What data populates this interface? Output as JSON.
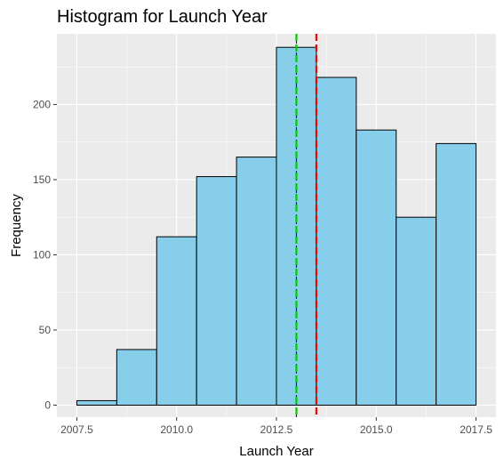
{
  "chart_data": {
    "type": "bar",
    "title": "Histogram for Launch Year",
    "xlabel": "Launch Year",
    "ylabel": "Frequency",
    "xlim": [
      2007.0,
      2018.0
    ],
    "ylim": [
      -8,
      247
    ],
    "bins": [
      {
        "from": 2007.5,
        "to": 2008.5,
        "count": 3
      },
      {
        "from": 2008.5,
        "to": 2009.5,
        "count": 37
      },
      {
        "from": 2009.5,
        "to": 2010.5,
        "count": 112
      },
      {
        "from": 2010.5,
        "to": 2011.5,
        "count": 152
      },
      {
        "from": 2011.5,
        "to": 2012.5,
        "count": 165
      },
      {
        "from": 2012.5,
        "to": 2013.5,
        "count": 238
      },
      {
        "from": 2013.5,
        "to": 2014.5,
        "count": 218
      },
      {
        "from": 2014.5,
        "to": 2015.5,
        "count": 183
      },
      {
        "from": 2015.5,
        "to": 2016.5,
        "count": 125
      },
      {
        "from": 2016.5,
        "to": 2017.5,
        "count": 174
      }
    ],
    "x_ticks": [
      {
        "value": 2007.5,
        "label": "2007.5"
      },
      {
        "value": 2010.0,
        "label": "2010.0"
      },
      {
        "value": 2012.5,
        "label": "2012.5"
      },
      {
        "value": 2015.0,
        "label": "2015.0"
      },
      {
        "value": 2017.5,
        "label": "2017.5"
      }
    ],
    "y_ticks": [
      {
        "value": 0,
        "label": "0"
      },
      {
        "value": 50,
        "label": "50"
      },
      {
        "value": 100,
        "label": "100"
      },
      {
        "value": 150,
        "label": "150"
      },
      {
        "value": 200,
        "label": "200"
      }
    ],
    "vlines": [
      {
        "x": 2013.0,
        "color": "#0000ff",
        "style": "dashed-thin"
      },
      {
        "x": 2013.0,
        "color": "#00cc00",
        "style": "dashed-thick"
      },
      {
        "x": 2013.5,
        "color": "#ff0000",
        "style": "dashed-thick"
      }
    ],
    "bar_fill": "#87ceeb",
    "bar_stroke": "#000000",
    "panel_background": "#ebebeb",
    "grid": true
  }
}
